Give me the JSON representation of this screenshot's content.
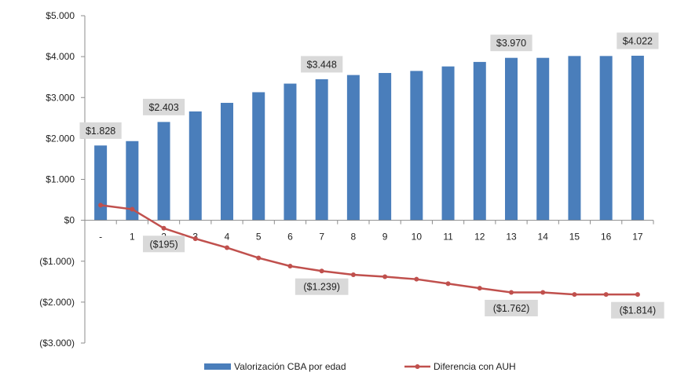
{
  "chart_data": {
    "type": "bar",
    "categories": [
      "-",
      "1",
      "2",
      "3",
      "4",
      "5",
      "6",
      "7",
      "8",
      "9",
      "10",
      "11",
      "12",
      "13",
      "14",
      "15",
      "16",
      "17"
    ],
    "y_ticks": [
      "$5.000",
      "$4.000",
      "$3.000",
      "$2.000",
      "$1.000",
      "$0",
      "($1.000)",
      "($2.000)",
      "($3.000)"
    ],
    "ylim": [
      -3000,
      5000
    ],
    "grid": false,
    "legend_position": "bottom",
    "series": [
      {
        "name": "Valorización CBA por edad",
        "type": "bar",
        "color": "#4a7ebb",
        "values": [
          1828,
          1935,
          2403,
          2660,
          2870,
          3130,
          3340,
          3448,
          3550,
          3600,
          3650,
          3760,
          3870,
          3970,
          3970,
          4015,
          4015,
          4022
        ]
      },
      {
        "name": "Diferencia con AUH",
        "type": "line",
        "color": "#c0504d",
        "values": [
          370,
          270,
          -195,
          -450,
          -670,
          -920,
          -1120,
          -1239,
          -1330,
          -1380,
          -1440,
          -1550,
          -1660,
          -1762,
          -1762,
          -1814,
          -1814,
          -1814
        ]
      }
    ],
    "annotations": [
      {
        "series": 0,
        "index": 0,
        "text": "$1.828"
      },
      {
        "series": 0,
        "index": 2,
        "text": "$2.403"
      },
      {
        "series": 0,
        "index": 7,
        "text": "$3.448"
      },
      {
        "series": 0,
        "index": 13,
        "text": "$3.970"
      },
      {
        "series": 0,
        "index": 17,
        "text": "$4.022"
      },
      {
        "series": 1,
        "index": 2,
        "text": "($195)"
      },
      {
        "series": 1,
        "index": 7,
        "text": "($1.239)"
      },
      {
        "series": 1,
        "index": 13,
        "text": "($1.762)"
      },
      {
        "series": 1,
        "index": 17,
        "text": "($1.814)"
      }
    ]
  }
}
